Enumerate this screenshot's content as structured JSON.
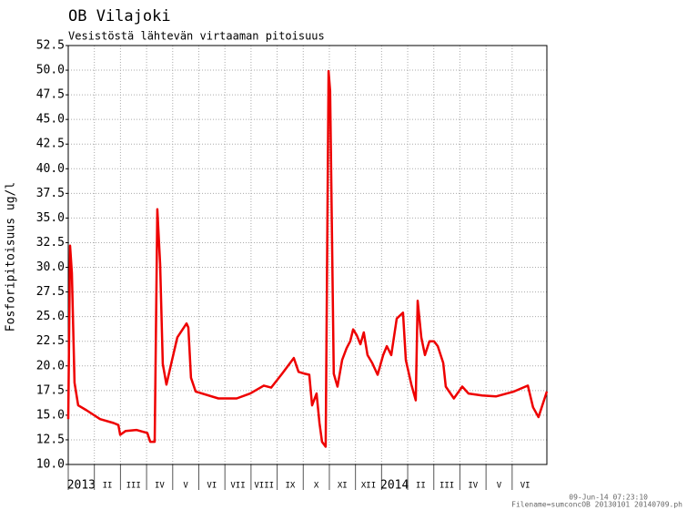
{
  "chart_data": {
    "type": "line",
    "title": "OB Vilajoki",
    "subtitle": "Vesistöstä lähtevän virtaaman pitoisuus",
    "y_label": "Fosforipitoisuus ug/l",
    "timestamp": "09-Jun-14 07:23:10",
    "filename": "Filename=sumconcOB 20130101 20140709.ph",
    "ylim": [
      10,
      52.5
    ],
    "yticks": [
      {
        "value": 10,
        "label": "10.0"
      },
      12.5,
      {
        "value": 15,
        "label": "15.0"
      },
      17.5,
      {
        "value": 20,
        "label": "20.0"
      },
      22.5,
      {
        "value": 25,
        "label": "25.0"
      },
      27.5,
      {
        "value": 30,
        "label": "30.0"
      },
      32.5,
      {
        "value": 35,
        "label": "35.0"
      },
      37.5,
      {
        "value": 40,
        "label": "40.0"
      },
      42.5,
      {
        "value": 45,
        "label": "45.0"
      },
      47.5,
      {
        "value": 50,
        "label": "50.0"
      },
      52.5
    ],
    "xlim": [
      0,
      18.33
    ],
    "xticks": [
      {
        "value": 0,
        "label": "2013"
      },
      {
        "value": 1,
        "label": "II"
      },
      {
        "value": 2,
        "label": "III"
      },
      {
        "value": 3,
        "label": "IV"
      },
      {
        "value": 4,
        "label": "V"
      },
      {
        "value": 5,
        "label": "VI"
      },
      {
        "value": 6,
        "label": "VII"
      },
      {
        "value": 7,
        "label": "VIII"
      },
      {
        "value": 8,
        "label": "IX"
      },
      {
        "value": 9,
        "label": "X"
      },
      {
        "value": 10,
        "label": "XI"
      },
      {
        "value": 11,
        "label": "XII"
      },
      {
        "value": 12,
        "label": "2014"
      },
      {
        "value": 13,
        "label": "II"
      },
      {
        "value": 14,
        "label": "III"
      },
      {
        "value": 15,
        "label": "IV"
      },
      {
        "value": 16,
        "label": "V"
      },
      {
        "value": 17,
        "label": "VI"
      }
    ],
    "grid": true,
    "series": [
      {
        "color": "#ee0000",
        "x": [
          0,
          0.07,
          0.14,
          0.24,
          0.38,
          0.7,
          1.22,
          1.74,
          1.92,
          1.99,
          2.2,
          2.61,
          3.03,
          3.14,
          3.31,
          3.41,
          3.52,
          3.62,
          3.76,
          3.94,
          4.18,
          4.53,
          4.6,
          4.7,
          4.88,
          5.75,
          6.45,
          6.97,
          7.49,
          7.77,
          8.19,
          8.64,
          8.82,
          9.06,
          9.23,
          9.34,
          9.51,
          9.62,
          9.72,
          9.86,
          9.97,
          10.03,
          10.17,
          10.31,
          10.49,
          10.66,
          10.8,
          10.91,
          11.05,
          11.19,
          11.32,
          11.46,
          11.64,
          11.85,
          12.06,
          12.2,
          12.37,
          12.58,
          12.82,
          12.93,
          13.14,
          13.31,
          13.38,
          13.52,
          13.66,
          13.83,
          14.01,
          14.15,
          14.36,
          14.46,
          14.77,
          15.09,
          15.33,
          15.85,
          16.38,
          17.07,
          17.6,
          17.8,
          18.01,
          18.33
        ],
        "values": [
          14.6,
          32.2,
          29.4,
          18.3,
          16.0,
          15.5,
          14.6,
          14.2,
          14.0,
          13.0,
          13.4,
          13.5,
          13.2,
          12.3,
          12.3,
          35.9,
          30.3,
          20.2,
          18.1,
          20.2,
          22.9,
          24.3,
          23.9,
          18.8,
          17.4,
          16.7,
          16.7,
          17.2,
          18.0,
          17.8,
          19.2,
          20.8,
          19.4,
          19.2,
          19.1,
          16.0,
          17.2,
          14.2,
          12.3,
          11.8,
          49.9,
          47.9,
          19.2,
          17.9,
          20.6,
          21.8,
          22.5,
          23.7,
          23.1,
          22.2,
          23.4,
          21.1,
          20.3,
          19.1,
          21.1,
          22.0,
          21.1,
          24.8,
          25.4,
          20.6,
          18.1,
          16.5,
          26.6,
          22.9,
          21.1,
          22.5,
          22.5,
          22.0,
          20.3,
          17.9,
          16.7,
          17.9,
          17.2,
          17.0,
          16.9,
          17.4,
          18.0,
          15.8,
          14.8,
          17.4
        ]
      }
    ]
  }
}
